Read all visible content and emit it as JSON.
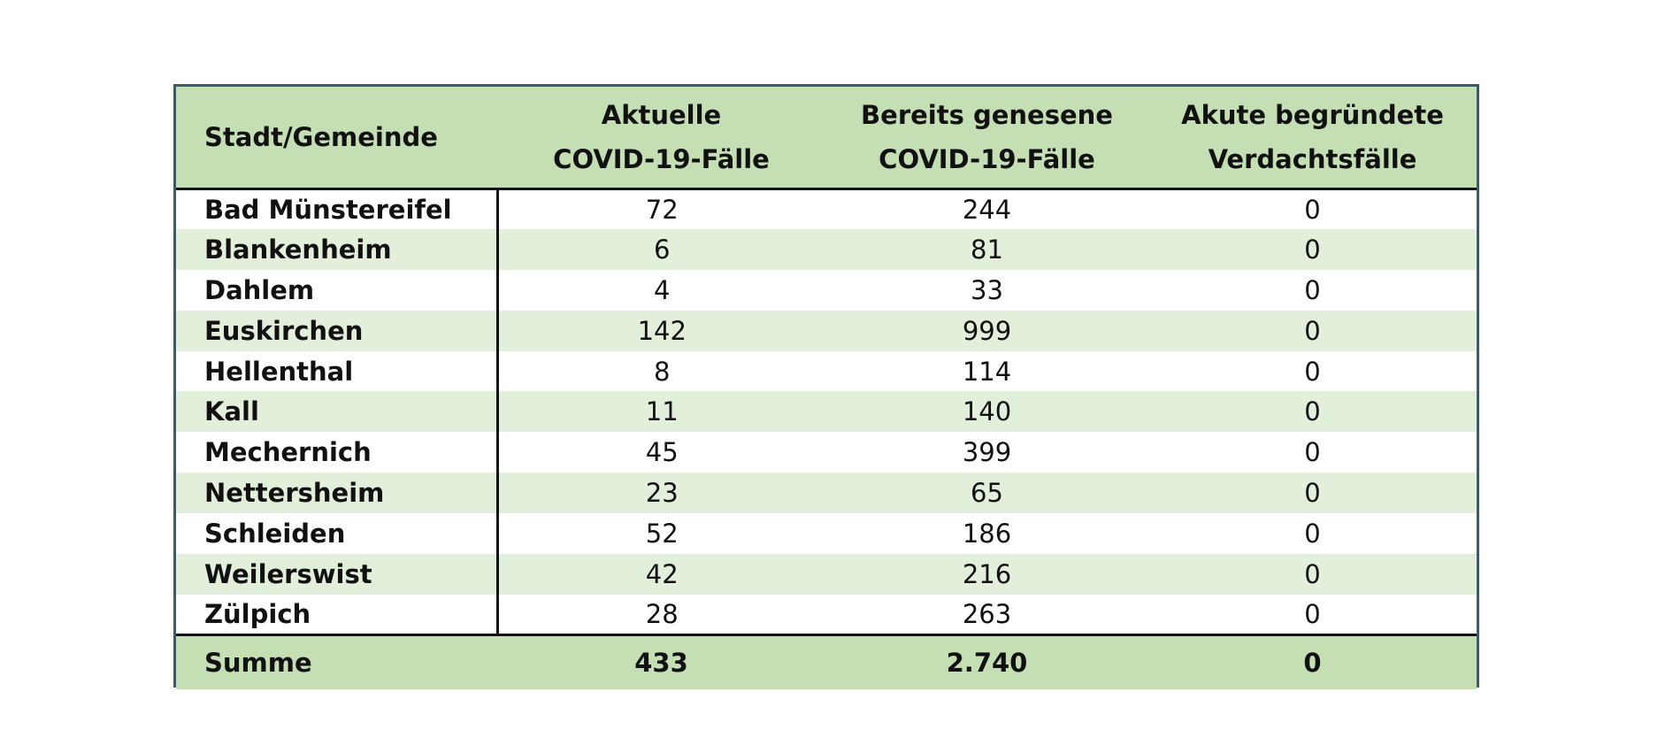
{
  "table": {
    "headers": [
      {
        "lines": [
          "Stadt/Gemeinde"
        ]
      },
      {
        "lines": [
          "Aktuelle",
          "COVID-19-Fälle"
        ]
      },
      {
        "lines": [
          "Bereits genesene",
          "COVID-19-Fälle"
        ]
      },
      {
        "lines": [
          "Akute begründete",
          "Verdachtsfälle"
        ]
      }
    ],
    "rows": [
      {
        "name": "Bad Münstereifel",
        "aktuell": "72",
        "genesen": "244",
        "verdacht": "0"
      },
      {
        "name": "Blankenheim",
        "aktuell": "6",
        "genesen": "81",
        "verdacht": "0"
      },
      {
        "name": "Dahlem",
        "aktuell": "4",
        "genesen": "33",
        "verdacht": "0"
      },
      {
        "name": "Euskirchen",
        "aktuell": "142",
        "genesen": "999",
        "verdacht": "0"
      },
      {
        "name": "Hellenthal",
        "aktuell": "8",
        "genesen": "114",
        "verdacht": "0"
      },
      {
        "name": "Kall",
        "aktuell": "11",
        "genesen": "140",
        "verdacht": "0"
      },
      {
        "name": "Mechernich",
        "aktuell": "45",
        "genesen": "399",
        "verdacht": "0"
      },
      {
        "name": "Nettersheim",
        "aktuell": "23",
        "genesen": "65",
        "verdacht": "0"
      },
      {
        "name": "Schleiden",
        "aktuell": "52",
        "genesen": "186",
        "verdacht": "0"
      },
      {
        "name": "Weilerswist",
        "aktuell": "42",
        "genesen": "216",
        "verdacht": "0"
      },
      {
        "name": "Zülpich",
        "aktuell": "28",
        "genesen": "263",
        "verdacht": "0"
      }
    ],
    "total": {
      "name": "Summe",
      "aktuell": "433",
      "genesen": "2.740",
      "verdacht": "0"
    }
  },
  "colors": {
    "header_bg": "#c4dfb3",
    "row_alt_bg": "#e2efda",
    "row_bg": "#ffffff",
    "frame_border": "#3c5a6b",
    "inner_border": "#111111"
  }
}
